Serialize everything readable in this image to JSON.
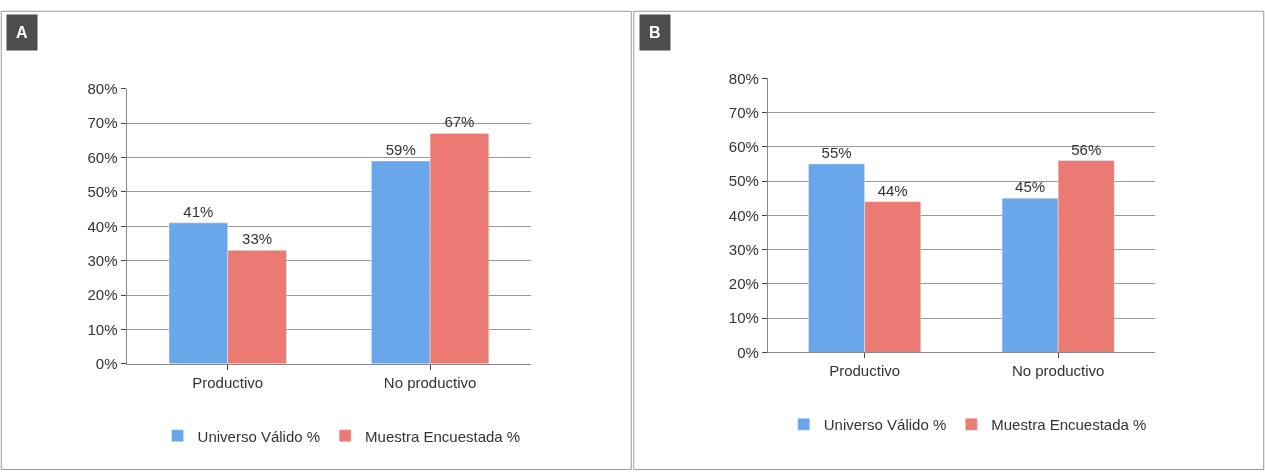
{
  "chart_data": [
    {
      "type": "bar",
      "title": "A",
      "categories": [
        "Productivo",
        "No productivo"
      ],
      "series": [
        {
          "name": "Universo Válido %",
          "color": "#6aa6ea",
          "values": [
            41,
            59
          ],
          "value_labels": [
            "41%",
            "59%"
          ]
        },
        {
          "name": "Muestra Encuestada %",
          "color": "#ea7a72",
          "values": [
            33,
            67
          ],
          "value_labels": [
            "33%",
            "67%"
          ]
        }
      ],
      "ylim": [
        0,
        80
      ],
      "yticks": [
        {
          "value": 0,
          "label": "0%"
        },
        {
          "value": 10,
          "label": "10%"
        },
        {
          "value": 20,
          "label": "20%"
        },
        {
          "value": 30,
          "label": "30%"
        },
        {
          "value": 40,
          "label": "40%"
        },
        {
          "value": 50,
          "label": "50%"
        },
        {
          "value": 60,
          "label": "60%"
        },
        {
          "value": 70,
          "label": "70%"
        },
        {
          "value": 80,
          "label": "80%"
        }
      ],
      "grid": "y",
      "legend": "bottom"
    },
    {
      "type": "bar",
      "title": "B",
      "categories": [
        "Productivo",
        "No productivo"
      ],
      "series": [
        {
          "name": "Universo Válido %",
          "color": "#6aa6ea",
          "values": [
            55,
            45
          ],
          "value_labels": [
            "55%",
            "45%"
          ]
        },
        {
          "name": "Muestra Encuestada %",
          "color": "#ea7a72",
          "values": [
            44,
            56
          ],
          "value_labels": [
            "44%",
            "56%"
          ]
        }
      ],
      "ylim": [
        0,
        80
      ],
      "yticks": [
        {
          "value": 0,
          "label": "0%"
        },
        {
          "value": 10,
          "label": "10%"
        },
        {
          "value": 20,
          "label": "20%"
        },
        {
          "value": 30,
          "label": "30%"
        },
        {
          "value": 40,
          "label": "40%"
        },
        {
          "value": 50,
          "label": "50%"
        },
        {
          "value": 60,
          "label": "60%"
        },
        {
          "value": 70,
          "label": "70%"
        },
        {
          "value": 80,
          "label": "80%"
        }
      ],
      "grid": "y",
      "legend": "bottom"
    }
  ]
}
